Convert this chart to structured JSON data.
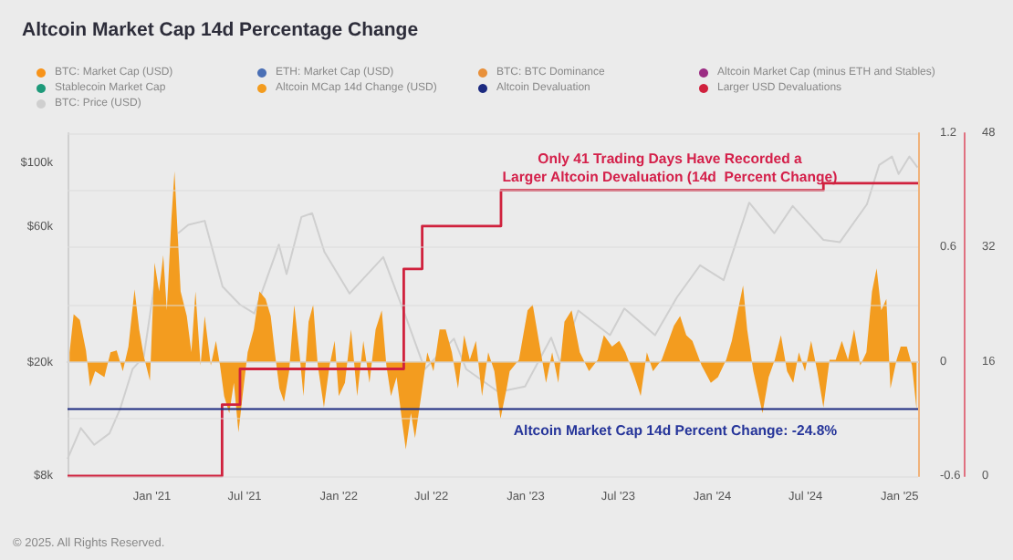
{
  "chart_data": {
    "type": "line",
    "title": "Altcoin Market Cap 14d Percentage Change",
    "annotations": [
      "Only 41 Trading Days Have Recorded a\nLarger Altcoin Devaluation (14d  Percent Change)",
      "Altcoin Market Cap 14d Percent Change: -24.8%",
      "© 2025. All Rights Reserved."
    ],
    "legend": "top",
    "grid": "y",
    "marker": "none",
    "xlim": [
      "2020-07-20",
      "2025-02-06"
    ],
    "xticks": [
      {
        "value": "2021-01-01",
        "label": "Jan '21"
      },
      {
        "value": "2021-07-01",
        "label": "Jul '21"
      },
      {
        "value": "2022-01-01",
        "label": "Jan '22"
      },
      {
        "value": "2022-07-01",
        "label": "Jul '22"
      },
      {
        "value": "2023-01-01",
        "label": "Jan '23"
      },
      {
        "value": "2023-07-01",
        "label": "Jul '23"
      },
      {
        "value": "2024-01-01",
        "label": "Jan '24"
      },
      {
        "value": "2024-07-01",
        "label": "Jul '24"
      },
      {
        "value": "2025-01-01",
        "label": "Jan '25"
      }
    ],
    "ylim": [
      8000,
      128000
    ],
    "log": "y",
    "yticks": [
      {
        "value": 8000,
        "label": "$8k"
      },
      {
        "value": 20000,
        "label": "$20k"
      },
      {
        "value": 60000,
        "label": "$60k"
      },
      {
        "value": 100000,
        "label": "$100k"
      }
    ],
    "y2lim": [
      -0.6,
      1.2
    ],
    "y2ticks": [
      -0.6,
      0,
      0.6,
      1.2
    ],
    "y3lim": [
      0,
      48
    ],
    "y3ticks": [
      0,
      {
        "value": 8,
        "label": null
      },
      16,
      {
        "value": 24,
        "label": null
      },
      32,
      {
        "value": 40,
        "label": null
      },
      48
    ],
    "series": [
      {
        "name": "BTC: Market Cap (USD)",
        "color": "#f7931a"
      },
      {
        "name": "ETH: Market Cap (USD)",
        "color": "#4a6fb5"
      },
      {
        "name": "BTC: BTC Dominance",
        "color": "#e8903a"
      },
      {
        "name": "Altcoin Market Cap (minus ETH and Stables)",
        "color": "#9b2c83"
      },
      {
        "name": "Stablecoin Market Cap",
        "color": "#1e9a7a"
      },
      {
        "name": "Altcoin MCap 14d Change (USD)",
        "color": "#f39c1f",
        "type": "area",
        "axis": "y2",
        "x": [
          "2020-07-24",
          "2020-08-01",
          "2020-08-13",
          "2020-08-25",
          "2020-09-02",
          "2020-09-12",
          "2020-09-30",
          "2020-10-12",
          "2020-10-24",
          "2020-11-05",
          "2020-11-16",
          "2020-11-28",
          "2020-12-07",
          "2020-12-16",
          "2020-12-28",
          "2021-01-06",
          "2021-01-15",
          "2021-01-23",
          "2021-01-30",
          "2021-02-08",
          "2021-02-14",
          "2021-02-20",
          "2021-02-26",
          "2021-03-10",
          "2021-03-19",
          "2021-03-27",
          "2021-04-06",
          "2021-04-14",
          "2021-04-26",
          "2021-05-06",
          "2021-05-14",
          "2021-05-22",
          "2021-06-01",
          "2021-06-10",
          "2021-06-19",
          "2021-06-27",
          "2021-07-07",
          "2021-07-19",
          "2021-07-30",
          "2021-08-11",
          "2021-08-21",
          "2021-08-29",
          "2021-09-07",
          "2021-09-16",
          "2021-09-26",
          "2021-10-06",
          "2021-10-16",
          "2021-10-24",
          "2021-11-03",
          "2021-11-12",
          "2021-11-21",
          "2021-12-03",
          "2021-12-14",
          "2021-12-24",
          "2022-01-01",
          "2022-01-13",
          "2022-01-25",
          "2022-02-06",
          "2022-02-18",
          "2022-03-02",
          "2022-03-14",
          "2022-03-26",
          "2022-04-04",
          "2022-04-13",
          "2022-04-24",
          "2022-05-06",
          "2022-05-12",
          "2022-05-22",
          "2022-05-30",
          "2022-06-11",
          "2022-06-23",
          "2022-07-05",
          "2022-07-17",
          "2022-07-29",
          "2022-08-10",
          "2022-08-22",
          "2022-09-03",
          "2022-09-14",
          "2022-09-26",
          "2022-10-08",
          "2022-10-20",
          "2022-11-01",
          "2022-11-13",
          "2022-11-25",
          "2022-12-01",
          "2022-12-19",
          "2023-01-05",
          "2023-01-15",
          "2023-01-27",
          "2023-02-10",
          "2023-02-22",
          "2023-03-06",
          "2023-03-18",
          "2023-04-01",
          "2023-04-17",
          "2023-05-05",
          "2023-05-22",
          "2023-06-03",
          "2023-06-19",
          "2023-07-03",
          "2023-07-15",
          "2023-08-02",
          "2023-08-14",
          "2023-08-26",
          "2023-09-07",
          "2023-09-24",
          "2023-10-18",
          "2023-10-30",
          "2023-11-11",
          "2023-11-23",
          "2023-12-11",
          "2023-12-29",
          "2024-01-12",
          "2024-01-28",
          "2024-02-08",
          "2024-02-20",
          "2024-03-01",
          "2024-03-09",
          "2024-03-21",
          "2024-04-08",
          "2024-04-20",
          "2024-05-02",
          "2024-05-14",
          "2024-05-26",
          "2024-06-07",
          "2024-06-18",
          "2024-06-30",
          "2024-07-12",
          "2024-07-24",
          "2024-08-05",
          "2024-08-17",
          "2024-08-29",
          "2024-09-10",
          "2024-09-22",
          "2024-10-04",
          "2024-10-16",
          "2024-10-28",
          "2024-11-08",
          "2024-11-17",
          "2024-11-26",
          "2024-12-06",
          "2024-12-14",
          "2024-12-26",
          "2025-01-03",
          "2025-01-15",
          "2025-01-25",
          "2025-02-03"
        ],
        "values": [
          0.05,
          0.25,
          0.22,
          0.06,
          -0.13,
          -0.05,
          -0.08,
          0.05,
          0.06,
          -0.05,
          0.08,
          0.38,
          0.17,
          0.03,
          -0.1,
          0.52,
          0.37,
          0.56,
          0.27,
          0.75,
          1.0,
          0.68,
          0.37,
          0.24,
          0.05,
          0.37,
          -0.02,
          0.24,
          -0.02,
          0.11,
          -0.02,
          -0.18,
          -0.27,
          -0.11,
          -0.37,
          -0.18,
          0.05,
          0.17,
          0.37,
          0.33,
          0.24,
          0.05,
          -0.14,
          -0.21,
          -0.05,
          0.3,
          0.05,
          -0.18,
          0.21,
          0.3,
          -0.02,
          -0.24,
          -0.02,
          0.11,
          -0.18,
          -0.11,
          0.17,
          -0.18,
          0.11,
          -0.11,
          0.17,
          0.27,
          -0.02,
          -0.18,
          -0.08,
          -0.34,
          -0.46,
          -0.27,
          -0.4,
          -0.18,
          0.05,
          -0.05,
          0.17,
          0.17,
          0.05,
          -0.14,
          0.14,
          0.01,
          0.11,
          -0.18,
          0.05,
          -0.05,
          -0.3,
          -0.14,
          -0.05,
          0.01,
          0.27,
          0.3,
          0.11,
          -0.11,
          0.05,
          -0.11,
          0.21,
          0.27,
          0.05,
          -0.05,
          0.01,
          0.14,
          0.08,
          0.11,
          0.05,
          -0.08,
          -0.18,
          0.05,
          -0.05,
          0.01,
          0.19,
          0.24,
          0.14,
          0.11,
          -0.02,
          -0.11,
          -0.08,
          0.01,
          0.11,
          0.27,
          0.4,
          0.17,
          -0.05,
          -0.27,
          -0.08,
          0.01,
          0.14,
          -0.05,
          -0.11,
          0.05,
          -0.05,
          0.11,
          -0.05,
          -0.24,
          0.01,
          0.01,
          0.11,
          0.01,
          0.17,
          -0.02,
          0.05,
          0.37,
          0.49,
          0.27,
          0.33,
          -0.14,
          0.01,
          0.08,
          0.08,
          -0.02,
          -0.25
        ]
      },
      {
        "name": "Altcoin Devaluation",
        "color": "#1c2a80",
        "axis": "y2",
        "x": [
          "2020-07-20",
          "2025-02-06"
        ],
        "values": [
          -0.248,
          -0.248
        ]
      },
      {
        "name": "Larger USD Devaluations",
        "color": "#d0213d",
        "type": "step",
        "axis": "y3",
        "x": [
          "2020-07-20",
          "2021-05-18",
          "2021-06-22",
          "2022-05-08",
          "2022-06-13",
          "2022-11-14",
          "2024-08-05",
          "2025-02-06"
        ],
        "values": [
          0,
          10,
          15,
          29,
          35,
          40,
          41,
          41
        ]
      },
      {
        "name": "BTC: Price (USD)",
        "color": "#cfcfcf",
        "x": [
          "2020-07-20",
          "2020-08-15",
          "2020-09-10",
          "2020-10-10",
          "2020-10-31",
          "2020-11-24",
          "2020-12-16",
          "2021-01-08",
          "2021-01-27",
          "2021-02-21",
          "2021-03-13",
          "2021-04-14",
          "2021-05-19",
          "2021-06-22",
          "2021-07-20",
          "2021-09-06",
          "2021-09-21",
          "2021-10-20",
          "2021-11-10",
          "2021-12-04",
          "2022-01-22",
          "2022-03-29",
          "2022-05-12",
          "2022-06-18",
          "2022-08-14",
          "2022-09-07",
          "2022-11-09",
          "2022-12-31",
          "2023-02-20",
          "2023-03-10",
          "2023-04-14",
          "2023-06-15",
          "2023-07-13",
          "2023-09-11",
          "2023-10-24",
          "2023-12-08",
          "2024-01-23",
          "2024-03-13",
          "2024-05-01",
          "2024-06-06",
          "2024-08-05",
          "2024-09-06",
          "2024-10-29",
          "2024-11-22",
          "2024-12-17",
          "2024-12-30",
          "2025-01-20",
          "2025-02-05"
        ],
        "values": [
          9200,
          11800,
          10300,
          11300,
          13800,
          19000,
          21000,
          40000,
          null,
          57000,
          61000,
          63000,
          37000,
          32000,
          29800,
          52000,
          41000,
          65000,
          67000,
          49000,
          35000,
          47000,
          29000,
          19000,
          24300,
          19000,
          15800,
          16500,
          24500,
          20000,
          30500,
          25000,
          31000,
          25000,
          34000,
          44000,
          39000,
          73000,
          57000,
          71000,
          54000,
          53000,
          72000,
          99000,
          106000,
          92000,
          106000,
          97000
        ]
      }
    ]
  }
}
